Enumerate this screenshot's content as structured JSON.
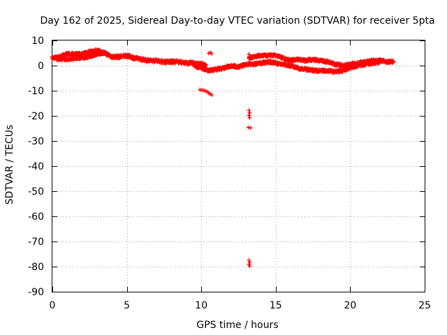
{
  "chart_data": {
    "type": "scatter",
    "title": "Day 162 of 2025, Sidereal Day-to-day VTEC variation (SDTVAR) for receiver 5pta",
    "xlabel": "GPS time / hours",
    "ylabel": "SDTVAR / TECUs",
    "xlim": [
      0,
      25
    ],
    "ylim": [
      -90,
      10
    ],
    "xticks": [
      0,
      5,
      10,
      15,
      20,
      25
    ],
    "yticks": [
      10,
      0,
      -10,
      -20,
      -30,
      -40,
      -50,
      -60,
      -70,
      -80,
      -90
    ],
    "grid": true,
    "marker": "+",
    "series": [
      {
        "name": "SDTVAR",
        "color": "#ff0000",
        "bands": [
          {
            "x": [
              0.0,
              0.5,
              1.0,
              1.5,
              2.0,
              2.5,
              3.0,
              3.5,
              4.0,
              4.5,
              5.0,
              5.5,
              6.0,
              6.5,
              7.0,
              7.5,
              8.0,
              8.5,
              9.0,
              9.5,
              10.0,
              10.3
            ],
            "y": [
              3.0,
              3.5,
              4.5,
              4.5,
              4.5,
              5.5,
              6.0,
              5.0,
              3.5,
              3.5,
              4.0,
              3.0,
              2.5,
              2.0,
              2.0,
              1.5,
              1.5,
              1.5,
              1.0,
              1.0,
              0.5,
              0.0
            ],
            "spread": 1.2
          },
          {
            "x": [
              0.3,
              1.0,
              2.0,
              2.5,
              3.0,
              3.5
            ],
            "y": [
              2.5,
              2.5,
              3.0,
              3.5,
              4.5,
              5.0
            ],
            "spread": 0.8
          },
          {
            "x": [
              9.5,
              10.0,
              10.5,
              11.0,
              11.5,
              12.0,
              12.5,
              13.0
            ],
            "y": [
              0.0,
              -1.0,
              -2.0,
              -1.5,
              -1.0,
              0.0,
              -0.5,
              0.5
            ],
            "spread": 1.0
          },
          {
            "x": [
              13.2,
              13.5,
              14.0,
              14.5,
              15.0,
              15.5,
              16.0,
              16.5,
              17.0,
              17.5,
              18.0,
              18.5,
              19.0,
              19.5,
              20.0,
              20.5,
              21.0,
              21.5,
              22.0,
              22.5,
              22.9
            ],
            "y": [
              3.0,
              3.5,
              4.0,
              4.0,
              4.0,
              3.0,
              2.0,
              2.5,
              2.0,
              2.5,
              2.0,
              1.5,
              0.5,
              0.0,
              0.5,
              1.0,
              1.5,
              2.0,
              2.0,
              1.5,
              1.5
            ],
            "spread": 1.0
          },
          {
            "x": [
              13.0,
              13.5,
              14.0,
              14.5,
              15.0,
              15.5,
              16.0,
              16.5,
              17.0,
              17.5,
              18.0,
              18.5,
              19.0,
              19.5,
              20.0,
              20.5,
              21.0,
              21.5,
              22.0
            ],
            "y": [
              0.5,
              0.5,
              1.0,
              1.5,
              1.0,
              0.5,
              0.0,
              -1.0,
              -1.5,
              -2.0,
              -2.0,
              -2.0,
              -2.5,
              -2.0,
              -1.0,
              0.0,
              0.5,
              1.0,
              1.5
            ],
            "spread": 1.0
          }
        ],
        "points": [
          [
            10.6,
            5.2
          ],
          [
            10.7,
            4.7
          ],
          [
            10.5,
            4.9
          ],
          [
            13.2,
            4.5
          ],
          [
            9.9,
            -9.6
          ],
          [
            10.0,
            -9.7
          ],
          [
            10.1,
            -9.8
          ],
          [
            10.2,
            -9.9
          ],
          [
            10.3,
            -10.1
          ],
          [
            10.4,
            -10.5
          ],
          [
            10.5,
            -10.9
          ],
          [
            10.6,
            -11.3
          ],
          [
            10.7,
            -11.7
          ],
          [
            13.2,
            -17.8
          ],
          [
            13.25,
            -18.8
          ],
          [
            13.2,
            -19.8
          ],
          [
            13.25,
            -20.8
          ],
          [
            13.15,
            -24.6
          ],
          [
            13.3,
            -24.8
          ],
          [
            13.2,
            -77.5
          ],
          [
            13.25,
            -78.3
          ],
          [
            13.2,
            -79.1
          ],
          [
            13.25,
            -79.8
          ]
        ]
      }
    ]
  }
}
